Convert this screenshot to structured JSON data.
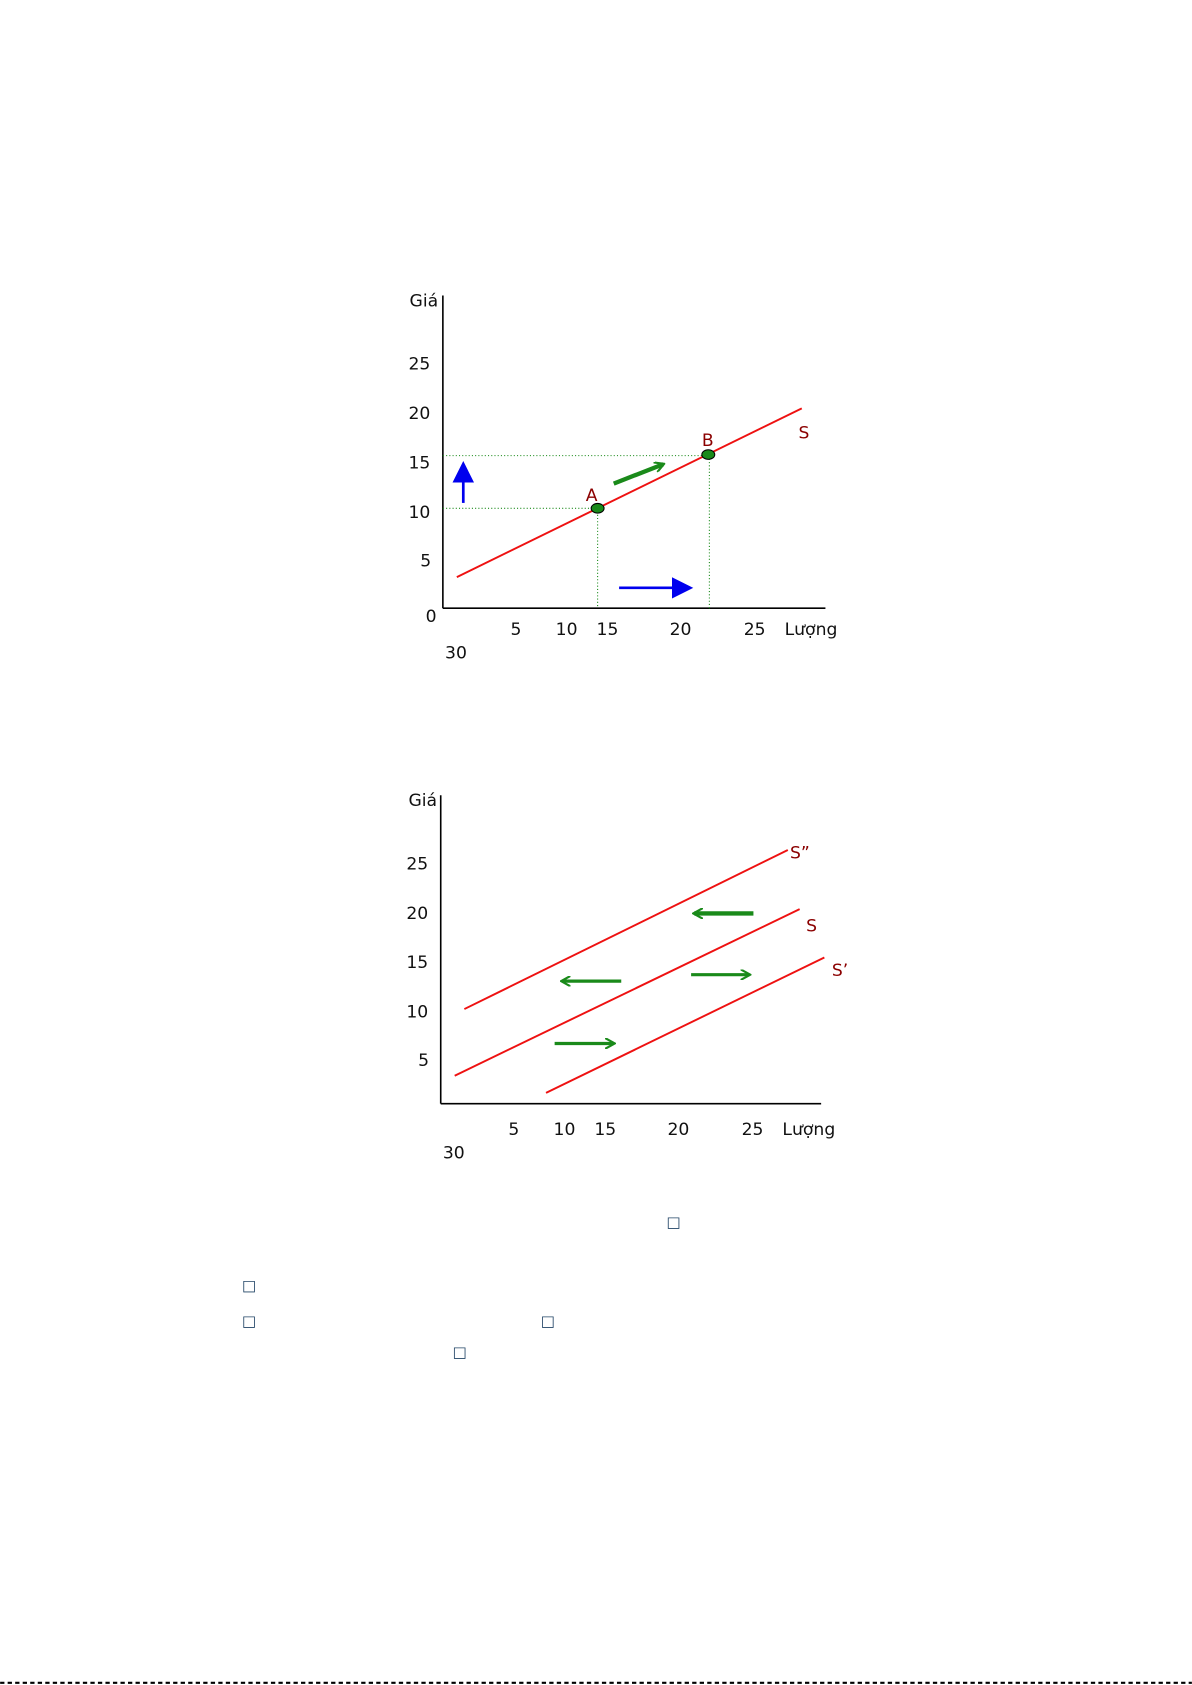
{
  "figure1": {
    "y_axis_label": "Giá",
    "x_axis_label": "Lượng",
    "y_tick_labels": [
      "25",
      "20",
      "15",
      "10",
      "5",
      "0"
    ],
    "x_tick_labels": [
      "5",
      "10",
      "15",
      "20",
      "25",
      "30"
    ],
    "point_labels": [
      "A",
      "B"
    ],
    "curve_label": "S"
  },
  "figure2": {
    "y_axis_label": "Giá",
    "x_axis_label": "Lượng",
    "y_tick_labels": [
      "25",
      "20",
      "15",
      "10",
      "5"
    ],
    "x_tick_labels": [
      "5",
      "10",
      "15",
      "20",
      "25",
      "30"
    ],
    "curve_labels": [
      "S”",
      "S",
      "S’"
    ]
  },
  "glyphs": [
    "□",
    "□",
    "□",
    "□",
    "□"
  ]
}
